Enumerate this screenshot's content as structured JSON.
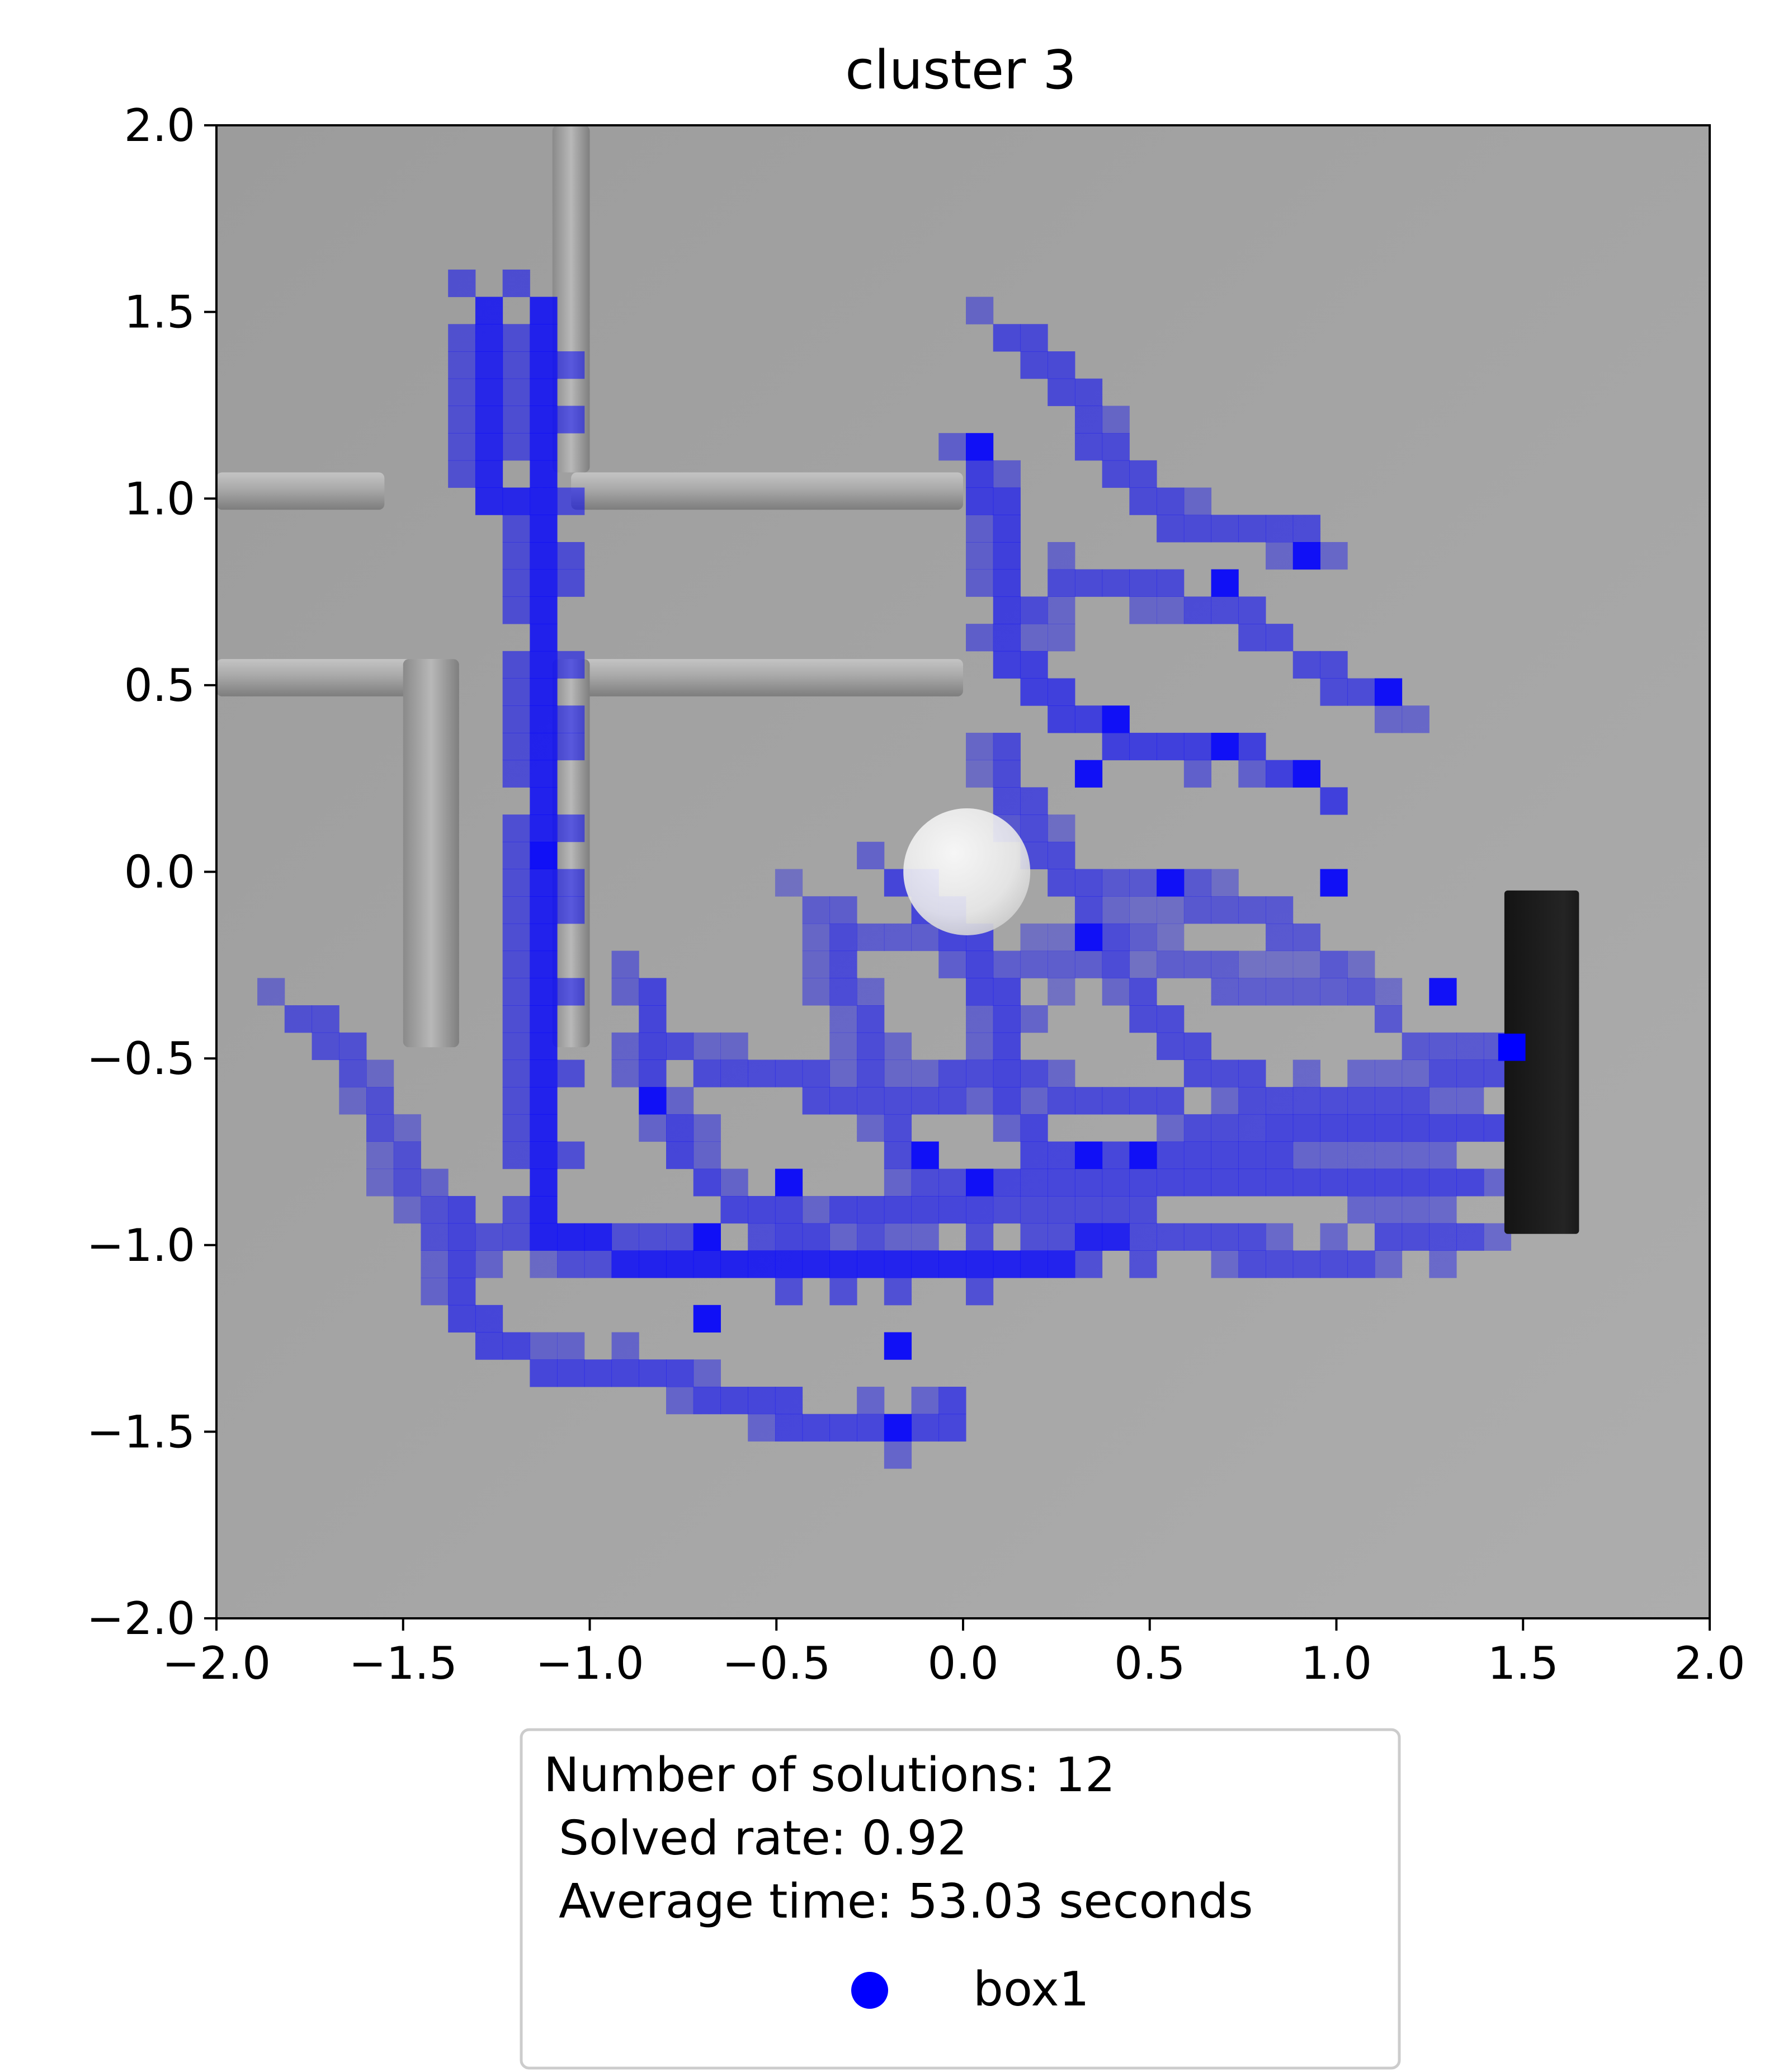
{
  "chart_data": {
    "type": "heatmap",
    "title": "cluster 3",
    "xlabel": "",
    "ylabel": "",
    "xlim": [
      -2.0,
      2.0
    ],
    "ylim": [
      -2.0,
      2.0
    ],
    "x_ticks": [
      "−2.0",
      "−1.5",
      "−1.0",
      "−0.5",
      "0.0",
      "0.5",
      "1.0",
      "1.5",
      "2.0"
    ],
    "y_ticks": [
      "2.0",
      "1.5",
      "1.0",
      "0.5",
      "0.0",
      "−0.5",
      "−1.0",
      "−1.5",
      "−2.0"
    ],
    "x_tick_values": [
      -2.0,
      -1.5,
      -1.0,
      -0.5,
      0.0,
      0.5,
      1.0,
      1.5,
      2.0
    ],
    "y_tick_values": [
      2.0,
      1.5,
      1.0,
      0.5,
      0.0,
      -0.5,
      -1.0,
      -1.5,
      -2.0
    ],
    "grid": false,
    "heatmap_color": "#0000ff",
    "background_color": "#a6a6a6",
    "cell_size": 0.073,
    "legend": {
      "placement": "below",
      "lines": [
        "Number of solutions: 12",
        " Solved rate: 0.92",
        " Average time: 53.03 seconds"
      ],
      "series_name": "box1",
      "marker_color": "#0000ff"
    },
    "stats": {
      "number_of_solutions": 12,
      "solved_rate": 0.92,
      "average_time_seconds": 53.03
    },
    "scene": {
      "walls": [
        {
          "x0": -2.0,
          "x1": -1.55,
          "y0": 0.97,
          "y1": 1.07
        },
        {
          "x0": -1.05,
          "x1": 0.0,
          "y0": 0.97,
          "y1": 1.07
        },
        {
          "x0": -1.1,
          "x1": -1.0,
          "y0": 1.07,
          "y1": 2.0
        },
        {
          "x0": -2.0,
          "x1": -1.35,
          "y0": 0.47,
          "y1": 0.57
        },
        {
          "x0": -1.05,
          "x1": 0.0,
          "y0": 0.47,
          "y1": 0.57
        },
        {
          "x0": -1.5,
          "x1": -1.35,
          "y0": -0.47,
          "y1": 0.57
        },
        {
          "x0": -1.1,
          "x1": -1.0,
          "y0": -0.47,
          "y1": 0.57
        }
      ],
      "sphere": {
        "x": 0.01,
        "y": 0.0,
        "r": 0.17
      },
      "box": {
        "x0": 1.45,
        "x1": 1.65,
        "y0": -0.97,
        "y1": -0.05
      }
    },
    "paths": [
      {
        "intensity": 0.85,
        "points": [
          [
            -1.15,
            1.5
          ],
          [
            -1.15,
            1.2
          ],
          [
            -1.15,
            0.8
          ],
          [
            -1.15,
            0.4
          ],
          [
            -1.15,
            0.0
          ],
          [
            -1.15,
            -0.4
          ],
          [
            -1.15,
            -0.8
          ],
          [
            -1.1,
            -1.0
          ],
          [
            -0.6,
            -1.05
          ],
          [
            0.0,
            -1.05
          ],
          [
            0.4,
            -1.0
          ]
        ]
      },
      {
        "intensity": 0.8,
        "points": [
          [
            -1.3,
            1.5
          ],
          [
            -1.3,
            1.3
          ],
          [
            -1.3,
            1.0
          ],
          [
            -1.2,
            1.0
          ]
        ]
      },
      {
        "intensity": 0.55,
        "points": [
          [
            -1.35,
            -0.9
          ],
          [
            -1.35,
            -1.15
          ],
          [
            -1.2,
            -1.3
          ],
          [
            -0.8,
            -1.35
          ],
          [
            -0.3,
            -1.5
          ],
          [
            0.0,
            -1.45
          ]
        ]
      },
      {
        "intensity": 0.45,
        "points": [
          [
            -1.75,
            -0.4
          ],
          [
            -1.6,
            -0.55
          ],
          [
            -1.5,
            -0.8
          ],
          [
            -1.4,
            -0.95
          ],
          [
            -1.2,
            -1.0
          ]
        ]
      },
      {
        "intensity": 0.6,
        "points": [
          [
            0.05,
            1.1
          ],
          [
            0.1,
            0.9
          ],
          [
            0.1,
            0.6
          ],
          [
            0.3,
            0.4
          ],
          [
            0.5,
            0.35
          ],
          [
            0.8,
            0.3
          ],
          [
            1.0,
            0.2
          ]
        ]
      },
      {
        "intensity": 0.5,
        "points": [
          [
            0.15,
            1.45
          ],
          [
            0.25,
            1.35
          ],
          [
            0.35,
            1.2
          ],
          [
            0.45,
            1.05
          ],
          [
            0.55,
            0.95
          ],
          [
            0.75,
            0.9
          ],
          [
            0.95,
            0.9
          ]
        ]
      },
      {
        "intensity": 0.5,
        "points": [
          [
            0.1,
            0.6
          ],
          [
            0.3,
            0.8
          ],
          [
            0.55,
            0.75
          ],
          [
            0.8,
            0.65
          ],
          [
            1.0,
            0.5
          ],
          [
            1.15,
            0.45
          ]
        ]
      },
      {
        "intensity": 0.5,
        "points": [
          [
            0.1,
            0.3
          ],
          [
            0.2,
            0.1
          ],
          [
            0.35,
            -0.1
          ],
          [
            0.45,
            -0.3
          ],
          [
            0.6,
            -0.5
          ],
          [
            0.8,
            -0.6
          ],
          [
            1.1,
            -0.6
          ],
          [
            1.4,
            -0.55
          ]
        ]
      },
      {
        "intensity": 0.4,
        "points": [
          [
            0.1,
            0.2
          ],
          [
            0.3,
            0.0
          ],
          [
            0.55,
            -0.05
          ],
          [
            0.8,
            -0.1
          ],
          [
            1.0,
            -0.25
          ],
          [
            1.2,
            -0.45
          ],
          [
            1.45,
            -0.5
          ]
        ]
      },
      {
        "intensity": 0.55,
        "points": [
          [
            -0.15,
            0.0
          ],
          [
            0.0,
            -0.15
          ],
          [
            0.1,
            -0.35
          ],
          [
            0.1,
            -0.55
          ],
          [
            0.2,
            -0.75
          ],
          [
            0.4,
            -0.8
          ],
          [
            0.7,
            -0.75
          ],
          [
            1.0,
            -0.7
          ],
          [
            1.45,
            -0.65
          ]
        ]
      },
      {
        "intensity": 0.55,
        "points": [
          [
            -0.85,
            -0.3
          ],
          [
            -0.85,
            -0.55
          ],
          [
            -0.75,
            -0.75
          ],
          [
            -0.6,
            -0.9
          ],
          [
            -0.4,
            -0.95
          ],
          [
            -0.1,
            -0.9
          ],
          [
            0.2,
            -0.85
          ],
          [
            0.5,
            -0.8
          ],
          [
            0.8,
            -0.8
          ],
          [
            1.1,
            -0.85
          ],
          [
            1.35,
            -0.8
          ]
        ]
      },
      {
        "intensity": 0.5,
        "points": [
          [
            -0.35,
            -0.2
          ],
          [
            -0.25,
            -0.45
          ],
          [
            -0.2,
            -0.7
          ],
          [
            -0.05,
            -0.85
          ],
          [
            0.25,
            -0.9
          ],
          [
            0.55,
            -0.95
          ],
          [
            0.9,
            -1.05
          ],
          [
            1.2,
            -1.0
          ],
          [
            1.35,
            -0.95
          ]
        ]
      },
      {
        "intensity": 0.5,
        "points": [
          [
            -0.75,
            -0.5
          ],
          [
            -0.5,
            -0.55
          ],
          [
            -0.3,
            -0.6
          ],
          [
            -0.1,
            -0.6
          ],
          [
            0.1,
            -0.55
          ],
          [
            0.35,
            -0.6
          ],
          [
            0.6,
            -0.65
          ],
          [
            0.85,
            -0.65
          ]
        ]
      },
      {
        "intensity": 0.35,
        "points": [
          [
            -0.4,
            -0.1
          ],
          [
            -0.1,
            -0.2
          ],
          [
            0.2,
            -0.25
          ],
          [
            0.5,
            -0.2
          ],
          [
            0.75,
            -0.3
          ],
          [
            1.0,
            -0.3
          ]
        ]
      }
    ],
    "hot_cells": [
      {
        "x": -1.15,
        "y": 0.07
      },
      {
        "x": 0.32,
        "y": -0.2
      },
      {
        "x": 0.58,
        "y": 0.0
      },
      {
        "x": 0.98,
        "y": 0.0
      },
      {
        "x": 0.42,
        "y": 0.4
      },
      {
        "x": 0.35,
        "y": 0.28
      },
      {
        "x": 0.95,
        "y": 0.27
      },
      {
        "x": 0.72,
        "y": 0.75
      },
      {
        "x": 0.95,
        "y": 0.88
      },
      {
        "x": 1.15,
        "y": 0.47
      },
      {
        "x": 0.3,
        "y": -0.73
      },
      {
        "x": 0.45,
        "y": -0.73
      },
      {
        "x": -0.5,
        "y": -0.8
      },
      {
        "x": -0.85,
        "y": -0.6
      },
      {
        "x": 1.32,
        "y": -0.33
      },
      {
        "x": 1.47,
        "y": -0.47
      },
      {
        "x": -0.15,
        "y": -1.47
      },
      {
        "x": -0.7,
        "y": -0.97
      },
      {
        "x": 0.72,
        "y": 0.35
      },
      {
        "x": 0.05,
        "y": 1.15
      },
      {
        "x": -0.13,
        "y": -0.73
      },
      {
        "x": 0.08,
        "y": -0.8
      },
      {
        "x": -0.15,
        "y": -1.27
      },
      {
        "x": -0.65,
        "y": -1.2
      }
    ]
  }
}
